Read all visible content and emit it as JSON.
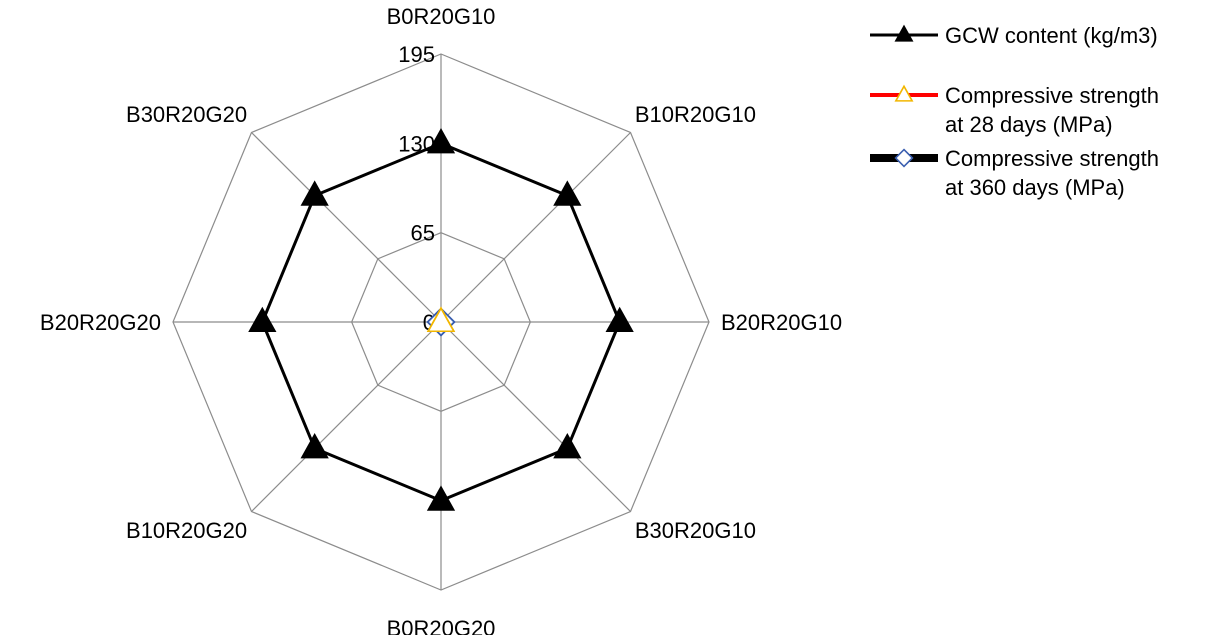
{
  "chart_data": {
    "type": "radar",
    "title": "",
    "categories": [
      "B0R20G10",
      "B10R20G10",
      "B20R20G10",
      "B30R20G10",
      "B0R20G20",
      "B10R20G20",
      "B20R20G20",
      "B30R20G20"
    ],
    "rlim": [
      0,
      195
    ],
    "ticks": [
      0,
      65,
      130,
      195
    ],
    "tick_labels": [
      "0",
      "65",
      "130",
      "195"
    ],
    "grid": true,
    "legend_position": "top-right",
    "series": [
      {
        "name_lines": [
          "GCW content (kg/m3)"
        ],
        "values": [
          130,
          130,
          130,
          130,
          130,
          130,
          130,
          130
        ],
        "color": "#000000",
        "marker": "triangle",
        "marker_fill": "#000000",
        "marker_stroke": "#000000"
      },
      {
        "name_lines": [
          "Compressive strength",
          "at 28 days (MPa)"
        ],
        "values": [
          0,
          0,
          0,
          0,
          0,
          0,
          0,
          0
        ],
        "color": "#ff0000",
        "marker": "triangle",
        "marker_fill": "#ffffff",
        "marker_stroke": "#f2b600"
      },
      {
        "name_lines": [
          "Compressive strength",
          "at 360 days (MPa)"
        ],
        "values": [
          0,
          0,
          0,
          0,
          0,
          0,
          0,
          0
        ],
        "color": "#000000",
        "marker": "diamond",
        "marker_fill": "#ffffff",
        "marker_stroke": "#3a5fb0"
      }
    ]
  }
}
